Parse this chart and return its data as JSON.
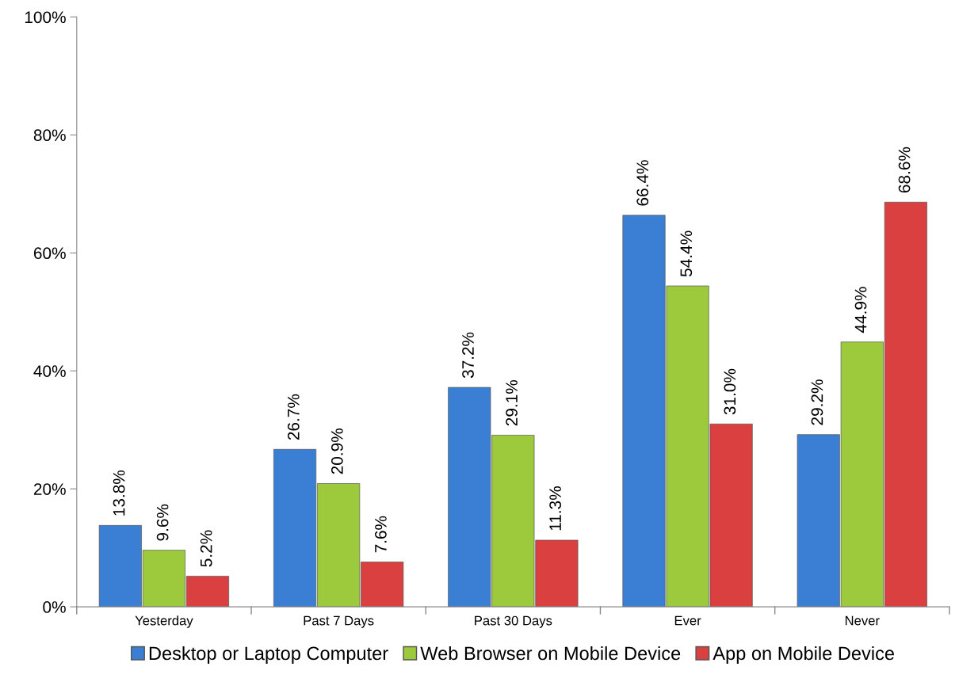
{
  "chart_data": {
    "type": "bar",
    "categories": [
      "Yesterday",
      "Past 7 Days",
      "Past 30 Days",
      "Ever",
      "Never"
    ],
    "series": [
      {
        "name": "Desktop or Laptop Computer",
        "color": "#3b7fd4",
        "values": [
          13.8,
          26.7,
          37.2,
          66.4,
          29.2
        ],
        "value_labels": [
          "13.8%",
          "26.7%",
          "37.2%",
          "66.4%",
          "29.2%"
        ]
      },
      {
        "name": "Web Browser on Mobile Device",
        "color": "#9dca3c",
        "values": [
          9.6,
          20.9,
          29.1,
          54.4,
          44.9
        ],
        "value_labels": [
          "9.6%",
          "20.9%",
          "29.1%",
          "54.4%",
          "44.9%"
        ]
      },
      {
        "name": "App on Mobile Device",
        "color": "#d9403f",
        "values": [
          5.2,
          7.6,
          11.3,
          31.0,
          68.6
        ],
        "value_labels": [
          "5.2%",
          "7.6%",
          "11.3%",
          "31.0%",
          "68.6%"
        ]
      }
    ],
    "ylim": [
      0,
      100
    ],
    "yticks": [
      {
        "value": 0,
        "label": "0%"
      },
      {
        "value": 20,
        "label": "20%"
      },
      {
        "value": 40,
        "label": "40%"
      },
      {
        "value": 60,
        "label": "60%"
      },
      {
        "value": 80,
        "label": "80%"
      },
      {
        "value": 100,
        "label": "100%"
      }
    ],
    "grid": false,
    "legend": "bottom"
  }
}
